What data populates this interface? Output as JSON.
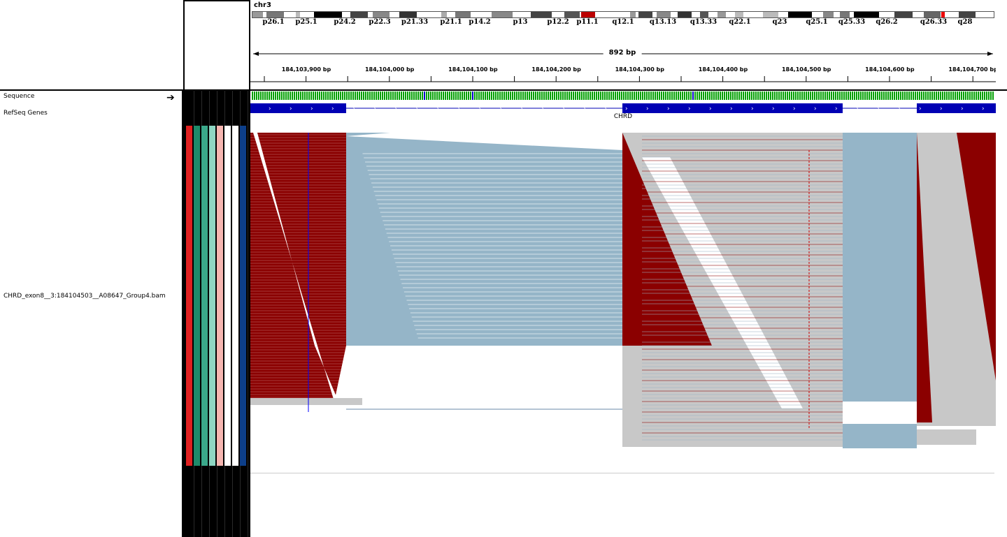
{
  "chromosome": {
    "name": "chr3"
  },
  "ideogram_bands": [
    "p26.1",
    "p25.1",
    "p24.2",
    "p22.3",
    "p21.33",
    "p21.1",
    "p14.2",
    "p13",
    "p12.2",
    "p11.1",
    "q12.1",
    "q13.13",
    "q13.33",
    "q22.1",
    "q23",
    "q25.1",
    "q25.33",
    "q26.2",
    "q26.33",
    "q28"
  ],
  "ruler": {
    "span": "892 bp",
    "ticks": [
      "184,103,900 bp",
      "184,104,000 bp",
      "184,104,100 bp",
      "184,104,200 bp",
      "184,104,300 bp",
      "184,104,400 bp",
      "184,104,500 bp",
      "184,104,600 bp",
      "184,104,700 bp"
    ]
  },
  "tracks": {
    "sequence": "Sequence",
    "refseq": "RefSeq Genes",
    "bam": "CHRD_exon8__3:184104503__A08647_Group4.bam"
  },
  "gene": {
    "name": "CHRD"
  },
  "attribute_colors": [
    "#e02020",
    "#1f8a6a",
    "#3aa88a",
    "#8fd6c3",
    "#f5b5b0",
    "#ffffff",
    "#ffffff",
    "#0d3f8a"
  ],
  "colors": {
    "read_gray": "#c8c8c8",
    "softclip_red": "#8b0000",
    "junction_blue": "#95b5c8",
    "gene_blue": "#0000b4"
  }
}
